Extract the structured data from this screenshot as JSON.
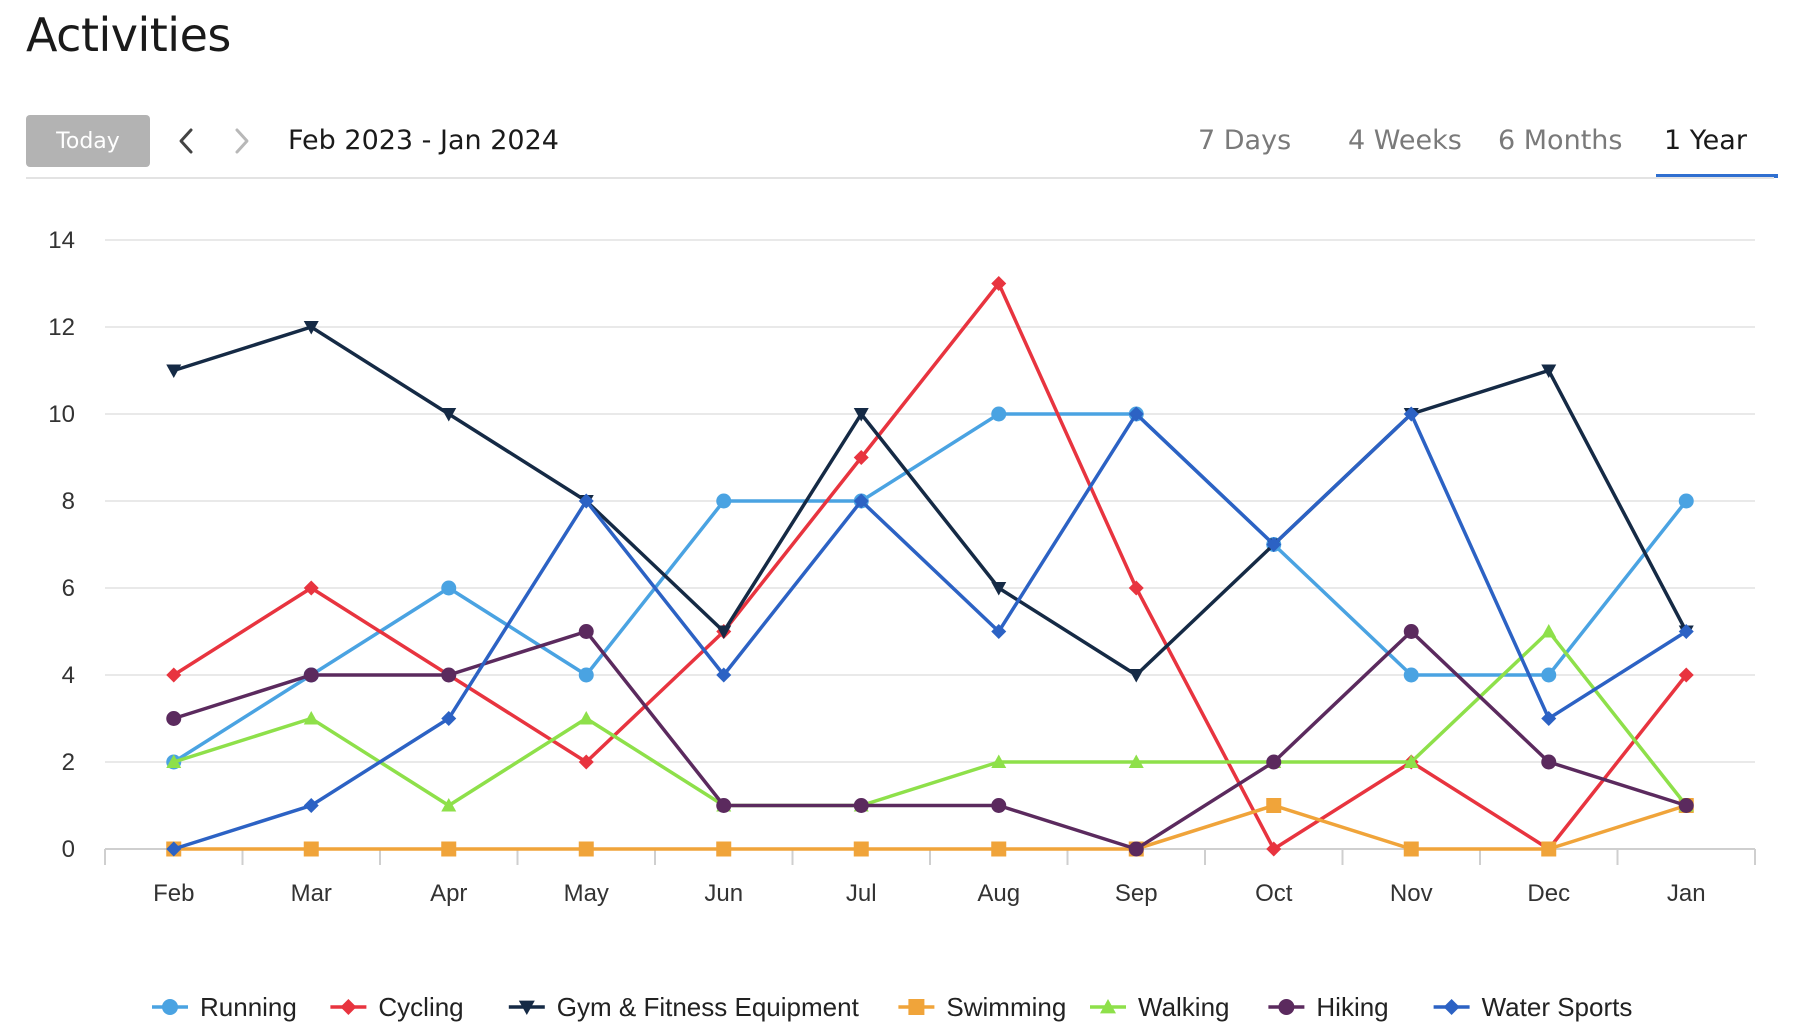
{
  "header": {
    "title": "Activities"
  },
  "toolbar": {
    "today_label": "Today",
    "prev_icon": "chevron-left-icon",
    "next_icon": "chevron-right-icon",
    "date_range": "Feb 2023 - Jan 2024",
    "tabs": [
      {
        "label": "7 Days",
        "active": false
      },
      {
        "label": "4 Weeks",
        "active": false
      },
      {
        "label": "6 Months",
        "active": false
      },
      {
        "label": "1 Year",
        "active": true
      }
    ],
    "accent_color": "#2f6fd0"
  },
  "chart_data": {
    "type": "line",
    "title": "",
    "xlabel": "",
    "ylabel": "",
    "categories": [
      "Feb",
      "Mar",
      "Apr",
      "May",
      "Jun",
      "Jul",
      "Aug",
      "Sep",
      "Oct",
      "Nov",
      "Dec",
      "Jan"
    ],
    "ylim": [
      0,
      14
    ],
    "yticks": [
      0,
      2,
      4,
      6,
      8,
      10,
      12,
      14
    ],
    "grid": true,
    "legend_position": "bottom",
    "series": [
      {
        "name": "Running",
        "color": "#4aa3e2",
        "marker": "circle",
        "values": [
          2,
          4,
          6,
          4,
          8,
          8,
          10,
          10,
          7,
          4,
          4,
          8
        ]
      },
      {
        "name": "Cycling",
        "color": "#e8343f",
        "marker": "diamond",
        "values": [
          4,
          6,
          4,
          2,
          5,
          9,
          13,
          6,
          0,
          2,
          0,
          4
        ]
      },
      {
        "name": "Gym & Fitness Equipment",
        "color": "#152a45",
        "marker": "triangle-down",
        "values": [
          11,
          12,
          10,
          8,
          5,
          10,
          6,
          4,
          7,
          10,
          11,
          5
        ]
      },
      {
        "name": "Swimming",
        "color": "#f0a43a",
        "marker": "square",
        "values": [
          0,
          0,
          0,
          0,
          0,
          0,
          0,
          0,
          1,
          0,
          0,
          1
        ]
      },
      {
        "name": "Walking",
        "color": "#8ee04a",
        "marker": "triangle",
        "values": [
          2,
          3,
          1,
          3,
          1,
          1,
          2,
          2,
          2,
          2,
          5,
          1
        ]
      },
      {
        "name": "Hiking",
        "color": "#5b2a5e",
        "marker": "circle",
        "values": [
          3,
          4,
          4,
          5,
          1,
          1,
          1,
          0,
          2,
          5,
          2,
          1
        ]
      },
      {
        "name": "Water Sports",
        "color": "#2c62c4",
        "marker": "diamond",
        "values": [
          0,
          1,
          3,
          8,
          4,
          8,
          5,
          10,
          7,
          10,
          3,
          5
        ]
      }
    ]
  }
}
